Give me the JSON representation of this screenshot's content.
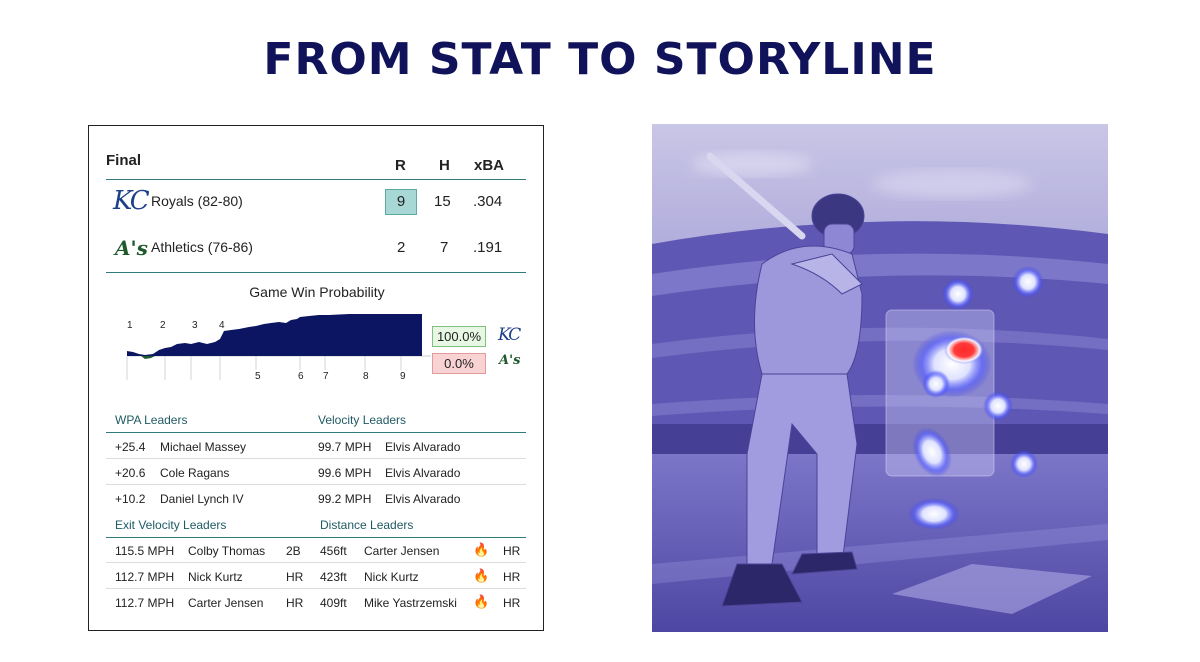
{
  "headline": "FROM STAT TO STORYLINE",
  "scoreboard": {
    "status": "Final",
    "columns": {
      "r": "R",
      "h": "H",
      "xba": "xBA"
    },
    "teams": [
      {
        "name": "Royals (82-80)",
        "logo": "KC",
        "r": "9",
        "h": "15",
        "xba": ".304"
      },
      {
        "name": "Athletics (76-86)",
        "logo": "A's",
        "r": "2",
        "h": "7",
        "xba": ".191"
      }
    ]
  },
  "win_probability": {
    "title": "Game Win Probability",
    "innings_top": [
      "1",
      "2",
      "3",
      "4"
    ],
    "innings_bottom": [
      "5",
      "6",
      "7",
      "8",
      "9"
    ],
    "royals_pct": "100.0%",
    "athletics_pct": "0.0%",
    "colors": {
      "fill": "#0c1561",
      "green_box": "#e8f7e3",
      "red_box": "#f9d3d3"
    }
  },
  "wpa_leaders": {
    "title": "WPA Leaders",
    "rows": [
      {
        "value": "+25.4",
        "player": "Michael Massey"
      },
      {
        "value": "+20.6",
        "player": "Cole Ragans"
      },
      {
        "value": "+10.2",
        "player": "Daniel Lynch IV"
      }
    ]
  },
  "velocity_leaders": {
    "title": "Velocity Leaders",
    "rows": [
      {
        "value": "99.7 MPH",
        "player": "Elvis Alvarado"
      },
      {
        "value": "99.6 MPH",
        "player": "Elvis Alvarado"
      },
      {
        "value": "99.2 MPH",
        "player": "Elvis Alvarado"
      }
    ]
  },
  "exit_velocity_leaders": {
    "title": "Exit Velocity Leaders",
    "rows": [
      {
        "value": "115.5 MPH",
        "player": "Colby Thomas",
        "result": "2B"
      },
      {
        "value": "112.7 MPH",
        "player": "Nick Kurtz",
        "result": "HR"
      },
      {
        "value": "112.7 MPH",
        "player": "Carter Jensen",
        "result": "HR"
      }
    ]
  },
  "distance_leaders": {
    "title": "Distance Leaders",
    "rows": [
      {
        "value": "456ft",
        "player": "Carter Jensen",
        "icon": "fire-icon",
        "result": "HR"
      },
      {
        "value": "423ft",
        "player": "Nick Kurtz",
        "icon": "fire-icon",
        "result": "HR"
      },
      {
        "value": "409ft",
        "player": "Mike Yastrzemski",
        "icon": "fire-icon",
        "result": "HR"
      }
    ]
  },
  "colors": {
    "headline": "#10125a",
    "accent_teal": "#2f7a7a",
    "photo_tint": "#6e68c4"
  }
}
